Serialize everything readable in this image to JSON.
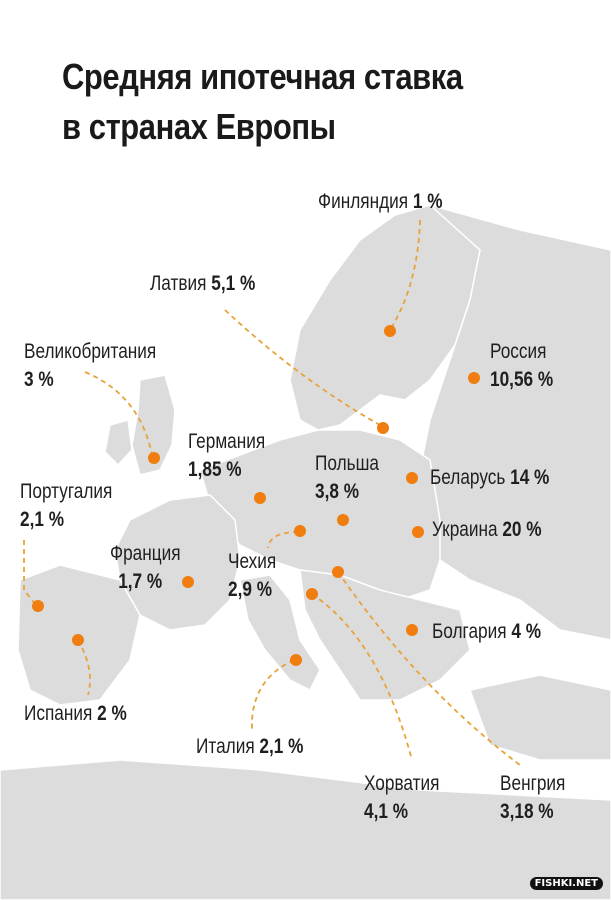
{
  "title": {
    "line1": "Средняя ипотечная ставка",
    "line2": "в странах Европы"
  },
  "colors": {
    "marker": "#ef7d0f",
    "leader": "#e8a23a",
    "land": "#dcdcdc",
    "land_dark": "#cfcfcf",
    "border": "#ffffff"
  },
  "countries": [
    {
      "name": "Финляндия",
      "rate": "1 %"
    },
    {
      "name": "Латвия",
      "rate": "5,1 %"
    },
    {
      "name": "Великобритания",
      "rate": "3 %"
    },
    {
      "name": "Россия",
      "rate": "10,56 %"
    },
    {
      "name": "Германия",
      "rate": "1,85 %"
    },
    {
      "name": "Польша",
      "rate": "3,8 %"
    },
    {
      "name": "Беларусь",
      "rate": "14 %"
    },
    {
      "name": "Португалия",
      "rate": "2,1 %"
    },
    {
      "name": "Украина",
      "rate": "20 %"
    },
    {
      "name": "Франция",
      "rate": "1,7 %"
    },
    {
      "name": "Чехия",
      "rate": "2,9 %"
    },
    {
      "name": "Болгария",
      "rate": "4 %"
    },
    {
      "name": "Испания",
      "rate": "2 %"
    },
    {
      "name": "Италия",
      "rate": "2,1 %"
    },
    {
      "name": "Хорватия",
      "rate": "4,1 %"
    },
    {
      "name": "Венгрия",
      "rate": "3,18 %"
    }
  ],
  "watermark": "FISHKI.NET"
}
